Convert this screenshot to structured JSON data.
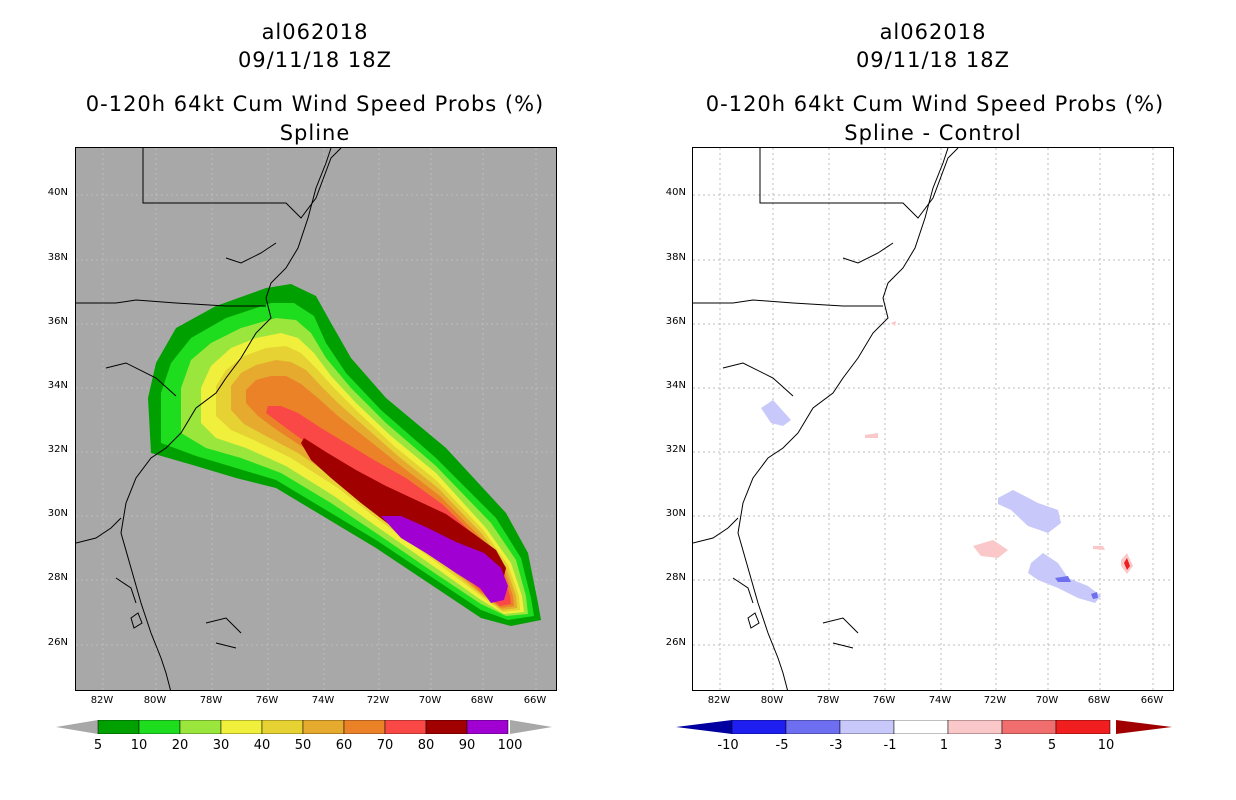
{
  "left_panel": {
    "storm_id": "al062018",
    "datetime": "09/11/18 18Z",
    "product": "0-120h 64kt Cum Wind Speed Probs (%)",
    "subtitle": "Spline",
    "background_color": "#a8a8a8",
    "colorbar": {
      "labels": [
        "5",
        "10",
        "20",
        "30",
        "40",
        "50",
        "60",
        "70",
        "80",
        "90",
        "100"
      ],
      "colors": [
        "#00a000",
        "#1edc1e",
        "#9ae63c",
        "#f0f03c",
        "#e6d232",
        "#e6aa2e",
        "#eb8228",
        "#fa4846",
        "#a00000",
        "#a000d2"
      ],
      "arrow_color": "#a8a8a8"
    }
  },
  "right_panel": {
    "storm_id": "al062018",
    "datetime": "09/11/18 18Z",
    "product": "0-120h 64kt Cum Wind Speed Probs (%)",
    "subtitle": "Spline - Control",
    "background_color": "#ffffff",
    "colorbar": {
      "labels": [
        "-10",
        "-5",
        "-3",
        "-1",
        "1",
        "3",
        "5",
        "10"
      ],
      "colors": [
        "#0000c8",
        "#1e1ef0",
        "#6e6ef0",
        "#c8c8fa",
        "#ffffff",
        "#fac8c8",
        "#f06e6e",
        "#f01e1e",
        "#c80000"
      ],
      "arrow_left": "#0000a0",
      "arrow_right": "#a00000"
    }
  },
  "axes": {
    "lat_labels": [
      "40N",
      "38N",
      "36N",
      "34N",
      "32N",
      "30N",
      "28N",
      "26N"
    ],
    "lon_labels": [
      "82W",
      "80W",
      "78W",
      "76W",
      "74W",
      "72W",
      "70W",
      "68W",
      "66W"
    ]
  }
}
